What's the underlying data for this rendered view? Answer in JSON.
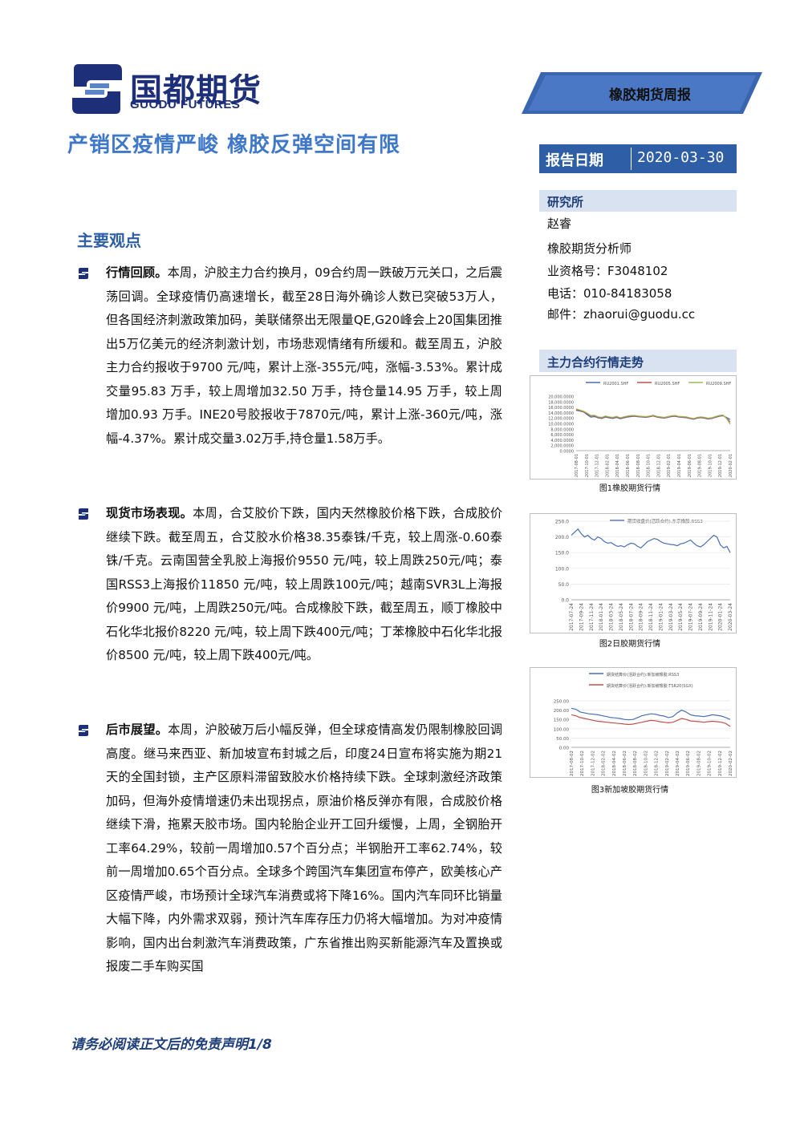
{
  "logo": {
    "cn": "国都期货",
    "en": "GUODU FUTURES"
  },
  "banner": {
    "label": "橡胶期货周报"
  },
  "title": "产销区疫情严峻 橡胶反弹空间有限",
  "report_date": {
    "label": "报告日期",
    "value": "2020-03-30"
  },
  "sidebar": {
    "institute_heading": "研究所",
    "analyst_name": "赵睿",
    "analyst_title": "橡胶期货分析师",
    "license": "业资格号：F3048102",
    "phone": "电话：010-84183058",
    "email": "邮件：zhaorui@guodu.cc",
    "trend_heading": "主力合约行情走势"
  },
  "main_points": {
    "heading": "主要观点",
    "items": [
      {
        "lead": "行情回顾。",
        "text": "本周，沪胶主力合约换月，09合约周一跌破万元关口，之后震荡回调。全球疫情仍高速增长，截至28日海外确诊人数已突破53万人，但各国经济刺激政策加码，美联储祭出无限量QE,G20峰会上20国集团推出5万亿美元的经济刺激计划，市场悲观情绪有所缓和。截至周五，沪胶主力合约报收于9700 元/吨，累计上涨-355元/吨，涨幅-3.53%。累计成交量95.83 万手，较上周增加32.50 万手，持仓量14.95 万手，较上周增加0.93 万手。INE20号胶报收于7870元/吨，累计上涨-360元/吨，涨幅-4.37%。累计成交量3.02万手,持仓量1.58万手。"
      },
      {
        "lead": "现货市场表现。",
        "text": "本周，合艾胶价下跌，国内天然橡胶价格下跌，合成胶价继续下跌。截至周五，合艾胶水价格38.35泰铢/千克，较上周涨-0.60泰铢/千克。云南国营全乳胶上海报价9550 元/吨，较上周跌250元/吨；泰国RSS3上海报价11850 元/吨，较上周跌100元/吨；越南SVR3L上海报价9900 元/吨，上周跌250元/吨。合成橡胶下跌，截至周五，顺丁橡胶中石化华北报价8220 元/吨，较上周下跌400元/吨；丁苯橡胶中石化华北报价8500 元/吨，较上周下跌400元/吨。"
      },
      {
        "lead": "后市展望。",
        "text": "本周，沪胶破万后小幅反弹，但全球疫情高发仍限制橡胶回调高度。继马来西亚、新加坡宣布封城之后，印度24日宣布将实施为期21天的全国封锁，主产区原料滞留致胶水价格持续下跌。全球刺激经济政策加码，但海外疫情增速仍未出现拐点，原油价格反弹亦有限，合成胶价格继续下滑，拖累天胶市场。国内轮胎企业开工回升缓慢，上周，全钢胎开工率64.29%，较前一周增加0.57个百分点；半钢胎开工率62.74%，较前一周增加0.65个百分点。全球多个跨国汽车集团宣布停产，欧美核心产区疫情严峻，市场预计全球汽车消费或将下降16%。国内汽车同环比销量大幅下降，内外需求双弱，预计汽车库存压力仍将大幅增加。为对冲疫情影响，国内出台刺激汽车消费政策，广东省推出购买新能源汽车及置换或报废二手车购买国"
      }
    ]
  },
  "footer": "请务必阅读正文后的免责声明1/8",
  "colors": {
    "brand_blue": "#2e5fa6",
    "title_blue": "#3f78c8",
    "light_band": "#d9e2f1"
  },
  "chart_data": [
    {
      "type": "line",
      "caption": "图1橡胶期货行情",
      "legend": [
        "RU2001.SHF",
        "RU2005.SHF",
        "RU2009.SHF"
      ],
      "y_ticks": [
        "20,000.0000",
        "18,000.0000",
        "16,000.0000",
        "14,000.0000",
        "12,000.0000",
        "10,000.0000",
        "8,000.0000",
        "6,000.0000",
        "4,000.0000",
        "2,000.0000",
        "0.0000"
      ],
      "ylim": [
        0,
        20000
      ],
      "x_ticks": [
        "2017-08-01",
        "2017-10-01",
        "2017-12-01",
        "2018-02-01",
        "2018-04-01",
        "2018-06-01",
        "2018-08-01",
        "2018-10-01",
        "2018-12-01",
        "2019-02-01",
        "2019-04-01",
        "2019-06-01",
        "2019-08-01",
        "2019-10-01",
        "2019-12-01",
        "2020-02-01"
      ],
      "series": [
        {
          "name": "RU2001.SHF",
          "color": "#4a6fb5",
          "values": [
            14800,
            14500,
            14200,
            13200,
            12300,
            12500,
            12000,
            11800,
            12300,
            12000,
            11800,
            12200,
            11700,
            12000,
            12300,
            12500,
            12600,
            12400,
            12300,
            12200,
            12400,
            12700,
            12300,
            12100,
            11900,
            12200,
            12500,
            12600,
            12300,
            12200,
            12100,
            11800,
            11500,
            11900,
            12100,
            11900,
            11600,
            11800,
            12200,
            12600,
            12800,
            12200,
            11400
          ]
        },
        {
          "name": "RU2005.SHF",
          "color": "#c0504d",
          "values": [
            15000,
            14700,
            14300,
            13500,
            12700,
            12800,
            12200,
            12000,
            12500,
            12200,
            12000,
            12400,
            11900,
            12200,
            12500,
            12700,
            12700,
            12500,
            12400,
            12300,
            12500,
            12800,
            12400,
            12200,
            12000,
            12300,
            12600,
            12700,
            12400,
            12300,
            12200,
            11900,
            11600,
            12000,
            12200,
            12000,
            11700,
            11900,
            12300,
            12700,
            12900,
            12000,
            10500
          ]
        },
        {
          "name": "RU2009.SHF",
          "color": "#9bbb59",
          "values": [
            15300,
            14900,
            14500,
            13800,
            12900,
            13000,
            12400,
            12200,
            12700,
            12400,
            12200,
            12600,
            12100,
            12400,
            12700,
            12900,
            12900,
            12700,
            12600,
            12500,
            12700,
            13000,
            12600,
            12400,
            12200,
            12500,
            12800,
            12900,
            12600,
            12500,
            12400,
            12100,
            11800,
            12200,
            12400,
            12200,
            11900,
            12100,
            12500,
            12900,
            13100,
            11800,
            9700
          ]
        }
      ]
    },
    {
      "type": "line",
      "caption": "图2日胶期货行情",
      "legend": [
        "期货收盘价(活跃合约):东京橡胶:RSS3"
      ],
      "y_ticks": [
        "250.0",
        "200.0",
        "150.0",
        "100.0",
        "50.0",
        "0.0"
      ],
      "ylim": [
        0,
        250
      ],
      "x_ticks": [
        "2017-07-24",
        "2017-09-24",
        "2017-11-24",
        "2018-01-24",
        "2018-03-24",
        "2018-05-24",
        "2018-07-24",
        "2018-09-24",
        "2018-11-24",
        "2019-01-24",
        "2019-03-24",
        "2019-05-24",
        "2019-07-24",
        "2019-09-24",
        "2019-11-24",
        "2020-01-24",
        "2020-03-24"
      ],
      "series": [
        {
          "name": "期货收盘价(活跃合约):东京橡胶:RSS3",
          "color": "#4a6fb5",
          "values": [
            205,
            215,
            225,
            210,
            200,
            205,
            195,
            190,
            200,
            195,
            185,
            180,
            182,
            175,
            170,
            172,
            168,
            175,
            180,
            178,
            170,
            165,
            175,
            185,
            190,
            195,
            192,
            185,
            180,
            178,
            176,
            175,
            172,
            178,
            180,
            185,
            190,
            180,
            172,
            168,
            175,
            185,
            195,
            205,
            200,
            175,
            165,
            170,
            150
          ]
        }
      ]
    },
    {
      "type": "line",
      "caption": "图3新加坡胶期货行情",
      "legend": [
        "期货结算价(活跃合约):新加坡橡胶:RSS3",
        "期货结算价(活跃合约):新加坡橡胶:TSR20(SGX)"
      ],
      "y_ticks": [
        "250.00",
        "200.00",
        "150.00",
        "100.00",
        "50.00",
        "0.00"
      ],
      "ylim": [
        0,
        250
      ],
      "x_ticks": [
        "2017-08-02",
        "2017-10-02",
        "2017-12-02",
        "2018-02-02",
        "2018-04-02",
        "2018-06-02",
        "2018-08-02",
        "2018-10-02",
        "2018-12-02",
        "2019-02-02",
        "2019-04-02",
        "2019-06-02",
        "2019-08-02",
        "2019-10-02",
        "2019-12-02",
        "2020-02-02"
      ],
      "series": [
        {
          "name": "期货结算价(活跃合约):新加坡橡胶:RSS3",
          "color": "#4a6fb5",
          "values": [
            210,
            205,
            190,
            185,
            180,
            178,
            175,
            170,
            165,
            160,
            158,
            155,
            150,
            148,
            150,
            160,
            170,
            175,
            180,
            178,
            172,
            168,
            160,
            165,
            185,
            200,
            190,
            175,
            170,
            168,
            165,
            170,
            175,
            172,
            168,
            160,
            150
          ]
        },
        {
          "name": "期货结算价(活跃合约):新加坡橡胶:TSR20(SGX)",
          "color": "#c0504d",
          "values": [
            175,
            170,
            160,
            155,
            150,
            145,
            140,
            138,
            135,
            132,
            130,
            128,
            125,
            123,
            125,
            130,
            135,
            140,
            145,
            143,
            138,
            135,
            132,
            135,
            145,
            155,
            150,
            142,
            140,
            138,
            135,
            138,
            140,
            138,
            135,
            128,
            112
          ]
        }
      ]
    }
  ]
}
